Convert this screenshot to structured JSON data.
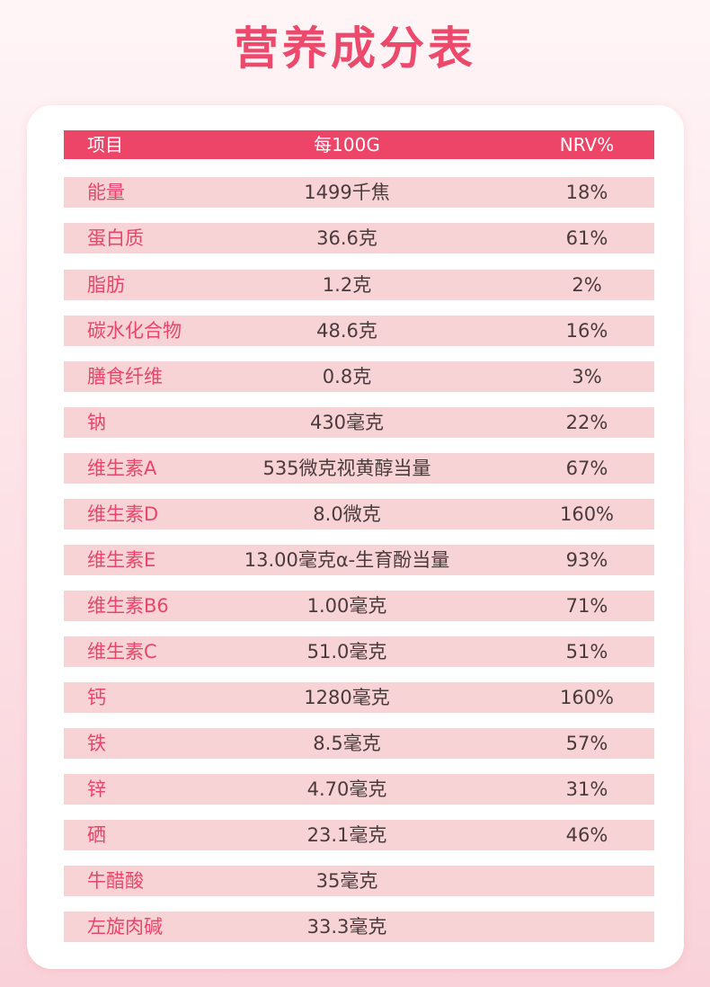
{
  "title": "营养成分表",
  "header": {
    "name": "项目",
    "amount": "每100G",
    "nrv": "NRV%"
  },
  "rows": [
    {
      "name": "能量",
      "amount": "1499千焦",
      "nrv": "18%"
    },
    {
      "name": "蛋白质",
      "amount": "36.6克",
      "nrv": "61%"
    },
    {
      "name": "脂肪",
      "amount": "1.2克",
      "nrv": "2%"
    },
    {
      "name": "碳水化合物",
      "amount": "48.6克",
      "nrv": "16%"
    },
    {
      "name": "膳食纤维",
      "amount": "0.8克",
      "nrv": "3%"
    },
    {
      "name": "钠",
      "amount": "430毫克",
      "nrv": "22%"
    },
    {
      "name": "维生素A",
      "amount": "535微克视黄醇当量",
      "nrv": "67%"
    },
    {
      "name": "维生素D",
      "amount": "8.0微克",
      "nrv": "160%"
    },
    {
      "name": "维生素E",
      "amount": "13.00毫克α-生育酚当量",
      "nrv": "93%"
    },
    {
      "name": "维生素B6",
      "amount": "1.00毫克",
      "nrv": "71%"
    },
    {
      "name": "维生素C",
      "amount": "51.0毫克",
      "nrv": "51%"
    },
    {
      "name": "钙",
      "amount": "1280毫克",
      "nrv": "160%"
    },
    {
      "name": "铁",
      "amount": "8.5毫克",
      "nrv": "57%"
    },
    {
      "name": "锌",
      "amount": "4.70毫克",
      "nrv": "31%"
    },
    {
      "name": "硒",
      "amount": "23.1毫克",
      "nrv": "46%"
    },
    {
      "name": "牛醋酸",
      "amount": "35毫克",
      "nrv": ""
    },
    {
      "name": "左旋肉碱",
      "amount": "33.3毫克",
      "nrv": ""
    }
  ],
  "colors": {
    "accent": "#ec4568",
    "row_bg": "#f7d3d6",
    "name_text": "#e8456a",
    "value_text": "#4a3a3c"
  }
}
